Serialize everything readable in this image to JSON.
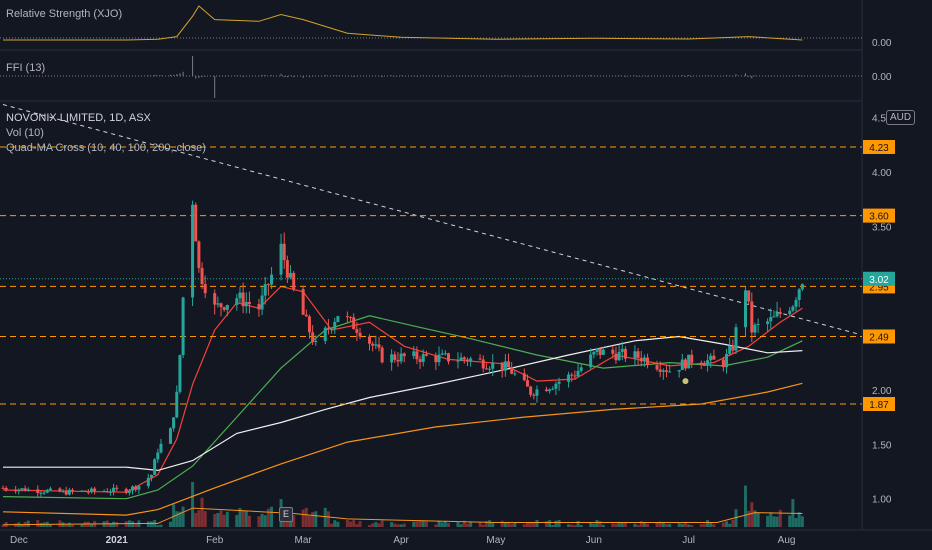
{
  "colors": {
    "background": "#131722",
    "up": "#26a69a",
    "down": "#ef5350",
    "ma10": "#f44336",
    "ma40": "#4caf50",
    "ma100": "#f0f0f0",
    "ma200": "#f7931a",
    "level": "#ff9800",
    "rs_line": "#d4a32c",
    "volume_up": "#1f6b63",
    "volume_down": "#7c2e33",
    "axis_text": "#b2b5be"
  },
  "panes": {
    "rs": {
      "label": "Relative Strength (XJO)",
      "value": "0.00"
    },
    "ffi": {
      "label": "FFI (13)",
      "value": "0.00"
    },
    "main": {
      "title": "NOVONIX LIMITED, 1D, ASX",
      "vol_label": "Vol (10)",
      "ma_label": "Quad-MA Cross (10, 40, 100, 200, close)",
      "currency": "AUD"
    }
  },
  "earnings_marker": "E",
  "chart_data": {
    "type": "candlestick",
    "symbol": "NOVONIX LIMITED",
    "interval": "1D",
    "exchange": "ASX",
    "currency": "AUD",
    "y_ticks": [
      "4.50",
      "4.00",
      "3.50",
      "3.00",
      "2.50",
      "2.00",
      "1.50",
      "1.00"
    ],
    "x_ticks": [
      "Dec",
      "2021",
      "Feb",
      "Mar",
      "Apr",
      "May",
      "Jun",
      "Jul",
      "Aug"
    ],
    "ylim": [
      0.55,
      4.55
    ],
    "last_price": 3.02,
    "price_levels": [
      4.23,
      3.6,
      2.95,
      2.49,
      1.87
    ],
    "level_labels": [
      "4.23",
      "3.60",
      "2.95",
      "2.49",
      "1.87"
    ],
    "last_price_label": "3.02",
    "trendline": {
      "start": {
        "date": "2020-11-26",
        "price": 4.62
      },
      "end": {
        "date": "2021-08-10",
        "price": 2.78
      }
    },
    "close_anchors": [
      [
        "2020-11-26",
        1.1
      ],
      [
        "2020-12-15",
        1.06
      ],
      [
        "2021-01-04",
        1.08
      ],
      [
        "2021-01-08",
        1.12
      ],
      [
        "2021-01-12",
        1.22
      ],
      [
        "2021-01-14",
        1.45
      ],
      [
        "2021-01-18",
        1.62
      ],
      [
        "2021-01-20",
        1.95
      ],
      [
        "2021-01-21",
        2.32
      ],
      [
        "2021-01-22",
        2.85
      ],
      [
        "2021-01-25",
        3.75
      ],
      [
        "2021-01-27",
        3.1
      ],
      [
        "2021-02-01",
        2.75
      ],
      [
        "2021-02-08",
        2.85
      ],
      [
        "2021-02-15",
        2.75
      ],
      [
        "2021-02-19",
        3.05
      ],
      [
        "2021-02-22",
        3.3
      ],
      [
        "2021-02-26",
        2.9
      ],
      [
        "2021-03-05",
        2.4
      ],
      [
        "2021-03-12",
        2.7
      ],
      [
        "2021-03-19",
        2.55
      ],
      [
        "2021-03-26",
        2.3
      ],
      [
        "2021-04-09",
        2.3
      ],
      [
        "2021-04-23",
        2.28
      ],
      [
        "2021-05-05",
        2.2
      ],
      [
        "2021-05-12",
        1.98
      ],
      [
        "2021-05-19",
        2.05
      ],
      [
        "2021-05-26",
        2.15
      ],
      [
        "2021-06-02",
        2.35
      ],
      [
        "2021-06-16",
        2.3
      ],
      [
        "2021-06-25",
        2.18
      ],
      [
        "2021-07-02",
        2.28
      ],
      [
        "2021-07-12",
        2.25
      ],
      [
        "2021-07-15",
        2.4
      ],
      [
        "2021-07-19",
        2.95
      ],
      [
        "2021-07-21",
        2.55
      ],
      [
        "2021-07-28",
        2.65
      ],
      [
        "2021-08-03",
        2.8
      ],
      [
        "2021-08-06",
        3.02
      ]
    ],
    "moving_averages": [
      {
        "name": "MA10",
        "points": [
          [
            "2020-11-26",
            1.08
          ],
          [
            "2021-01-04",
            1.06
          ],
          [
            "2021-01-14",
            1.22
          ],
          [
            "2021-01-20",
            1.55
          ],
          [
            "2021-01-25",
            2.05
          ],
          [
            "2021-02-01",
            2.55
          ],
          [
            "2021-02-08",
            2.8
          ],
          [
            "2021-02-15",
            2.75
          ],
          [
            "2021-02-22",
            2.95
          ],
          [
            "2021-03-01",
            2.9
          ],
          [
            "2021-03-10",
            2.55
          ],
          [
            "2021-03-22",
            2.62
          ],
          [
            "2021-04-02",
            2.4
          ],
          [
            "2021-04-16",
            2.28
          ],
          [
            "2021-05-03",
            2.24
          ],
          [
            "2021-05-14",
            2.08
          ],
          [
            "2021-05-26",
            2.1
          ],
          [
            "2021-06-08",
            2.32
          ],
          [
            "2021-06-25",
            2.22
          ],
          [
            "2021-07-09",
            2.25
          ],
          [
            "2021-07-20",
            2.4
          ],
          [
            "2021-07-30",
            2.62
          ],
          [
            "2021-08-06",
            2.75
          ]
        ]
      },
      {
        "name": "MA40",
        "points": [
          [
            "2020-11-26",
            1.02
          ],
          [
            "2021-01-04",
            1.0
          ],
          [
            "2021-01-14",
            1.08
          ],
          [
            "2021-01-25",
            1.3
          ],
          [
            "2021-02-08",
            1.75
          ],
          [
            "2021-02-22",
            2.2
          ],
          [
            "2021-03-08",
            2.55
          ],
          [
            "2021-03-22",
            2.68
          ],
          [
            "2021-04-06",
            2.58
          ],
          [
            "2021-04-23",
            2.47
          ],
          [
            "2021-05-14",
            2.32
          ],
          [
            "2021-06-04",
            2.2
          ],
          [
            "2021-06-25",
            2.25
          ],
          [
            "2021-07-12",
            2.22
          ],
          [
            "2021-07-26",
            2.3
          ],
          [
            "2021-08-06",
            2.45
          ]
        ]
      },
      {
        "name": "MA100",
        "points": [
          [
            "2020-11-26",
            1.29
          ],
          [
            "2021-01-04",
            1.29
          ],
          [
            "2021-01-14",
            1.26
          ],
          [
            "2021-01-25",
            1.35
          ],
          [
            "2021-02-08",
            1.6
          ],
          [
            "2021-02-22",
            1.7
          ],
          [
            "2021-03-08",
            1.82
          ],
          [
            "2021-03-22",
            1.93
          ],
          [
            "2021-04-12",
            2.05
          ],
          [
            "2021-05-03",
            2.18
          ],
          [
            "2021-05-24",
            2.32
          ],
          [
            "2021-06-14",
            2.45
          ],
          [
            "2021-06-28",
            2.49
          ],
          [
            "2021-07-12",
            2.42
          ],
          [
            "2021-07-26",
            2.34
          ],
          [
            "2021-08-06",
            2.36
          ]
        ]
      },
      {
        "name": "MA200",
        "points": [
          [
            "2020-11-26",
            0.88
          ],
          [
            "2021-01-04",
            0.85
          ],
          [
            "2021-01-14",
            0.9
          ],
          [
            "2021-02-01",
            1.1
          ],
          [
            "2021-02-22",
            1.32
          ],
          [
            "2021-03-15",
            1.52
          ],
          [
            "2021-04-12",
            1.66
          ],
          [
            "2021-05-10",
            1.75
          ],
          [
            "2021-06-07",
            1.82
          ],
          [
            "2021-07-05",
            1.87
          ],
          [
            "2021-07-26",
            1.98
          ],
          [
            "2021-08-06",
            2.06
          ]
        ]
      }
    ],
    "rs_series_points": [
      [
        "2020-11-26",
        0.0
      ],
      [
        "2021-01-04",
        0.0
      ],
      [
        "2021-01-14",
        0.02
      ],
      [
        "2021-01-20",
        0.1
      ],
      [
        "2021-01-25",
        0.7
      ],
      [
        "2021-01-27",
        1.0
      ],
      [
        "2021-02-01",
        0.6
      ],
      [
        "2021-02-15",
        0.55
      ],
      [
        "2021-02-22",
        0.75
      ],
      [
        "2021-03-01",
        0.6
      ],
      [
        "2021-03-15",
        0.2
      ],
      [
        "2021-04-01",
        0.08
      ],
      [
        "2021-05-01",
        0.02
      ],
      [
        "2021-06-01",
        0.05
      ],
      [
        "2021-07-01",
        0.03
      ],
      [
        "2021-07-20",
        0.1
      ],
      [
        "2021-08-06",
        0.0
      ]
    ],
    "volume_scale": "relative 0-1",
    "volume_spikes": [
      [
        "2021-01-20",
        0.35
      ],
      [
        "2021-01-25",
        1.0
      ],
      [
        "2021-01-28",
        0.65
      ],
      [
        "2021-02-19",
        0.45
      ],
      [
        "2021-02-22",
        0.62
      ],
      [
        "2021-03-05",
        0.35
      ],
      [
        "2021-07-19",
        0.92
      ],
      [
        "2021-07-21",
        0.55
      ],
      [
        "2021-08-03",
        0.62
      ]
    ],
    "volume_ma_points": [
      [
        "2020-11-26",
        0.05
      ],
      [
        "2021-01-14",
        0.08
      ],
      [
        "2021-01-25",
        0.42
      ],
      [
        "2021-02-05",
        0.38
      ],
      [
        "2021-02-26",
        0.3
      ],
      [
        "2021-03-15",
        0.18
      ],
      [
        "2021-05-01",
        0.1
      ],
      [
        "2021-07-10",
        0.1
      ],
      [
        "2021-07-22",
        0.32
      ],
      [
        "2021-08-06",
        0.3
      ]
    ]
  }
}
